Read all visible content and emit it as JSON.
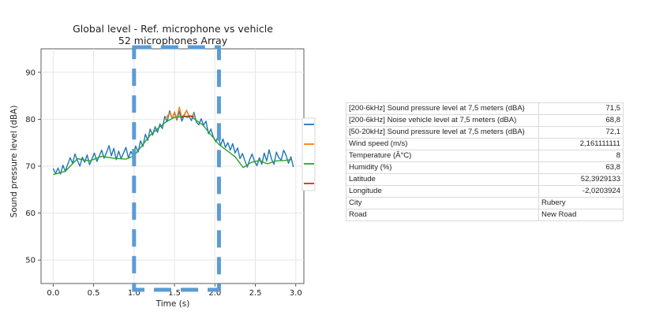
{
  "chart_data": {
    "type": "line",
    "title": "Global level - Ref. microphone vs vehicle",
    "subtitle": "52 microphones Array",
    "xlabel": "Time (s)",
    "ylabel": "Sound pressure level (dBA)",
    "xlim": [
      -0.15,
      3.1
    ],
    "ylim": [
      45,
      95
    ],
    "xticks": [
      0.0,
      0.5,
      1.0,
      1.5,
      2.0,
      2.5,
      3.0
    ],
    "xtick_labels": [
      "0.0",
      "0.5",
      "1.0",
      "1.5",
      "2.0",
      "2.5",
      "3.0"
    ],
    "yticks": [
      50,
      60,
      70,
      80,
      90
    ],
    "ytick_labels": [
      "50",
      "60",
      "70",
      "80",
      "90"
    ],
    "grid": true,
    "legend": "right",
    "highlight_window": [
      1.0,
      2.05
    ],
    "series": [
      {
        "color": "#1f77b4",
        "x": [
          0.0,
          0.03,
          0.06,
          0.09,
          0.12,
          0.15,
          0.18,
          0.21,
          0.24,
          0.27,
          0.3,
          0.33,
          0.36,
          0.39,
          0.42,
          0.45,
          0.48,
          0.51,
          0.54,
          0.57,
          0.6,
          0.63,
          0.66,
          0.69,
          0.72,
          0.75,
          0.78,
          0.81,
          0.84,
          0.87,
          0.9,
          0.93,
          0.96,
          0.99,
          1.02,
          1.05,
          1.08,
          1.11,
          1.14,
          1.17,
          1.2,
          1.23,
          1.26,
          1.29,
          1.32,
          1.35,
          1.38,
          1.41,
          1.44,
          1.47,
          1.5,
          1.53,
          1.56,
          1.59,
          1.62,
          1.65,
          1.68,
          1.71,
          1.74,
          1.77,
          1.8,
          1.83,
          1.86,
          1.89,
          1.92,
          1.95,
          1.98,
          2.01,
          2.04,
          2.07,
          2.1,
          2.13,
          2.16,
          2.19,
          2.22,
          2.25,
          2.28,
          2.31,
          2.34,
          2.37,
          2.4,
          2.43,
          2.46,
          2.49,
          2.52,
          2.55,
          2.58,
          2.61,
          2.64,
          2.67,
          2.7,
          2.73,
          2.76,
          2.79,
          2.82,
          2.85,
          2.88,
          2.91,
          2.94,
          2.97
        ],
        "y": [
          69.5,
          68.4,
          69.6,
          68.3,
          70.2,
          68.9,
          70.4,
          71.8,
          70.6,
          72.6,
          71.2,
          70.0,
          71.9,
          70.8,
          72.4,
          70.3,
          71.6,
          72.8,
          71.0,
          72.2,
          73.4,
          71.7,
          72.9,
          74.4,
          72.2,
          73.8,
          71.4,
          73.2,
          71.6,
          72.8,
          74.0,
          71.7,
          73.1,
          72.2,
          74.3,
          73.0,
          75.4,
          74.2,
          76.8,
          75.5,
          77.9,
          76.6,
          78.4,
          77.2,
          79.0,
          78.0,
          80.6,
          79.5,
          81.8,
          80.2,
          81.4,
          79.8,
          81.7,
          79.6,
          80.8,
          81.9,
          80.6,
          79.7,
          81.5,
          79.4,
          78.8,
          80.1,
          78.7,
          79.6,
          76.9,
          77.9,
          76.3,
          75.2,
          76.4,
          74.4,
          75.8,
          74.0,
          75.0,
          73.4,
          74.8,
          72.8,
          73.9,
          71.6,
          72.7,
          71.2,
          69.8,
          71.4,
          72.6,
          71.0,
          70.1,
          71.8,
          70.4,
          72.8,
          71.1,
          73.5,
          71.5,
          70.4,
          73.0,
          71.8,
          71.3,
          73.4,
          72.3,
          70.6,
          72.0,
          69.8
        ]
      },
      {
        "color": "#ff7f0e",
        "x": [
          1.38,
          1.41,
          1.44,
          1.47,
          1.5,
          1.53,
          1.56,
          1.59,
          1.62,
          1.65,
          1.68,
          1.71,
          1.74
        ],
        "y": [
          80.0,
          80.6,
          81.4,
          80.2,
          81.6,
          80.1,
          82.6,
          80.4,
          81.0,
          81.8,
          80.8,
          80.5,
          81.3
        ]
      },
      {
        "color": "#2ca02c",
        "x": [
          0.0,
          0.15,
          0.3,
          0.45,
          0.6,
          0.75,
          0.9,
          1.0,
          1.1,
          1.2,
          1.3,
          1.4,
          1.5,
          1.6,
          1.7,
          1.75,
          1.85,
          1.95,
          2.05,
          2.15,
          2.25,
          2.35,
          2.45,
          2.55,
          2.65,
          2.75,
          2.85,
          2.95
        ],
        "y": [
          68.2,
          68.9,
          71.6,
          71.1,
          72.1,
          71.7,
          71.5,
          72.2,
          74.4,
          76.6,
          78.1,
          79.5,
          80.4,
          80.6,
          80.7,
          80.0,
          78.8,
          76.7,
          74.6,
          73.3,
          72.0,
          69.7,
          70.8,
          71.2,
          70.5,
          71.1,
          71.2,
          71.4
        ]
      },
      {
        "color": "#d62728",
        "x": [
          1.58,
          1.62,
          1.66,
          1.7,
          1.74
        ],
        "y": [
          80.3,
          80.6,
          80.4,
          80.7,
          80.5
        ]
      }
    ]
  },
  "info_table": {
    "rows": [
      {
        "label": "[200-6kHz] Sound pressure level at 7,5 meters (dBA)",
        "value": "71,5",
        "align": "right"
      },
      {
        "label": "[200-6kHz] Noise vehicle level at 7,5 meters (dBA)",
        "value": "68,8",
        "align": "right"
      },
      {
        "label": "[50-20kHz] Sound pressure level at 7,5 meters (dBA)",
        "value": "72,1",
        "align": "right"
      },
      {
        "label": "Wind speed (m/s)",
        "value": "2,161111111",
        "align": "right"
      },
      {
        "label": "Temperature (Â°C)",
        "value": "8",
        "align": "right"
      },
      {
        "label": "Humidity (%)",
        "value": "63,8",
        "align": "right"
      },
      {
        "label": "Latitude",
        "value": "52,3929133",
        "align": "right"
      },
      {
        "label": "Longitude",
        "value": "-2,0203924",
        "align": "right"
      },
      {
        "label": "City",
        "value": "Rubery",
        "align": "left"
      },
      {
        "label": "Road",
        "value": "New Road",
        "align": "left"
      }
    ]
  },
  "colors": {
    "highlight": "#5b9bd5",
    "grid": "#e6e6e6"
  }
}
